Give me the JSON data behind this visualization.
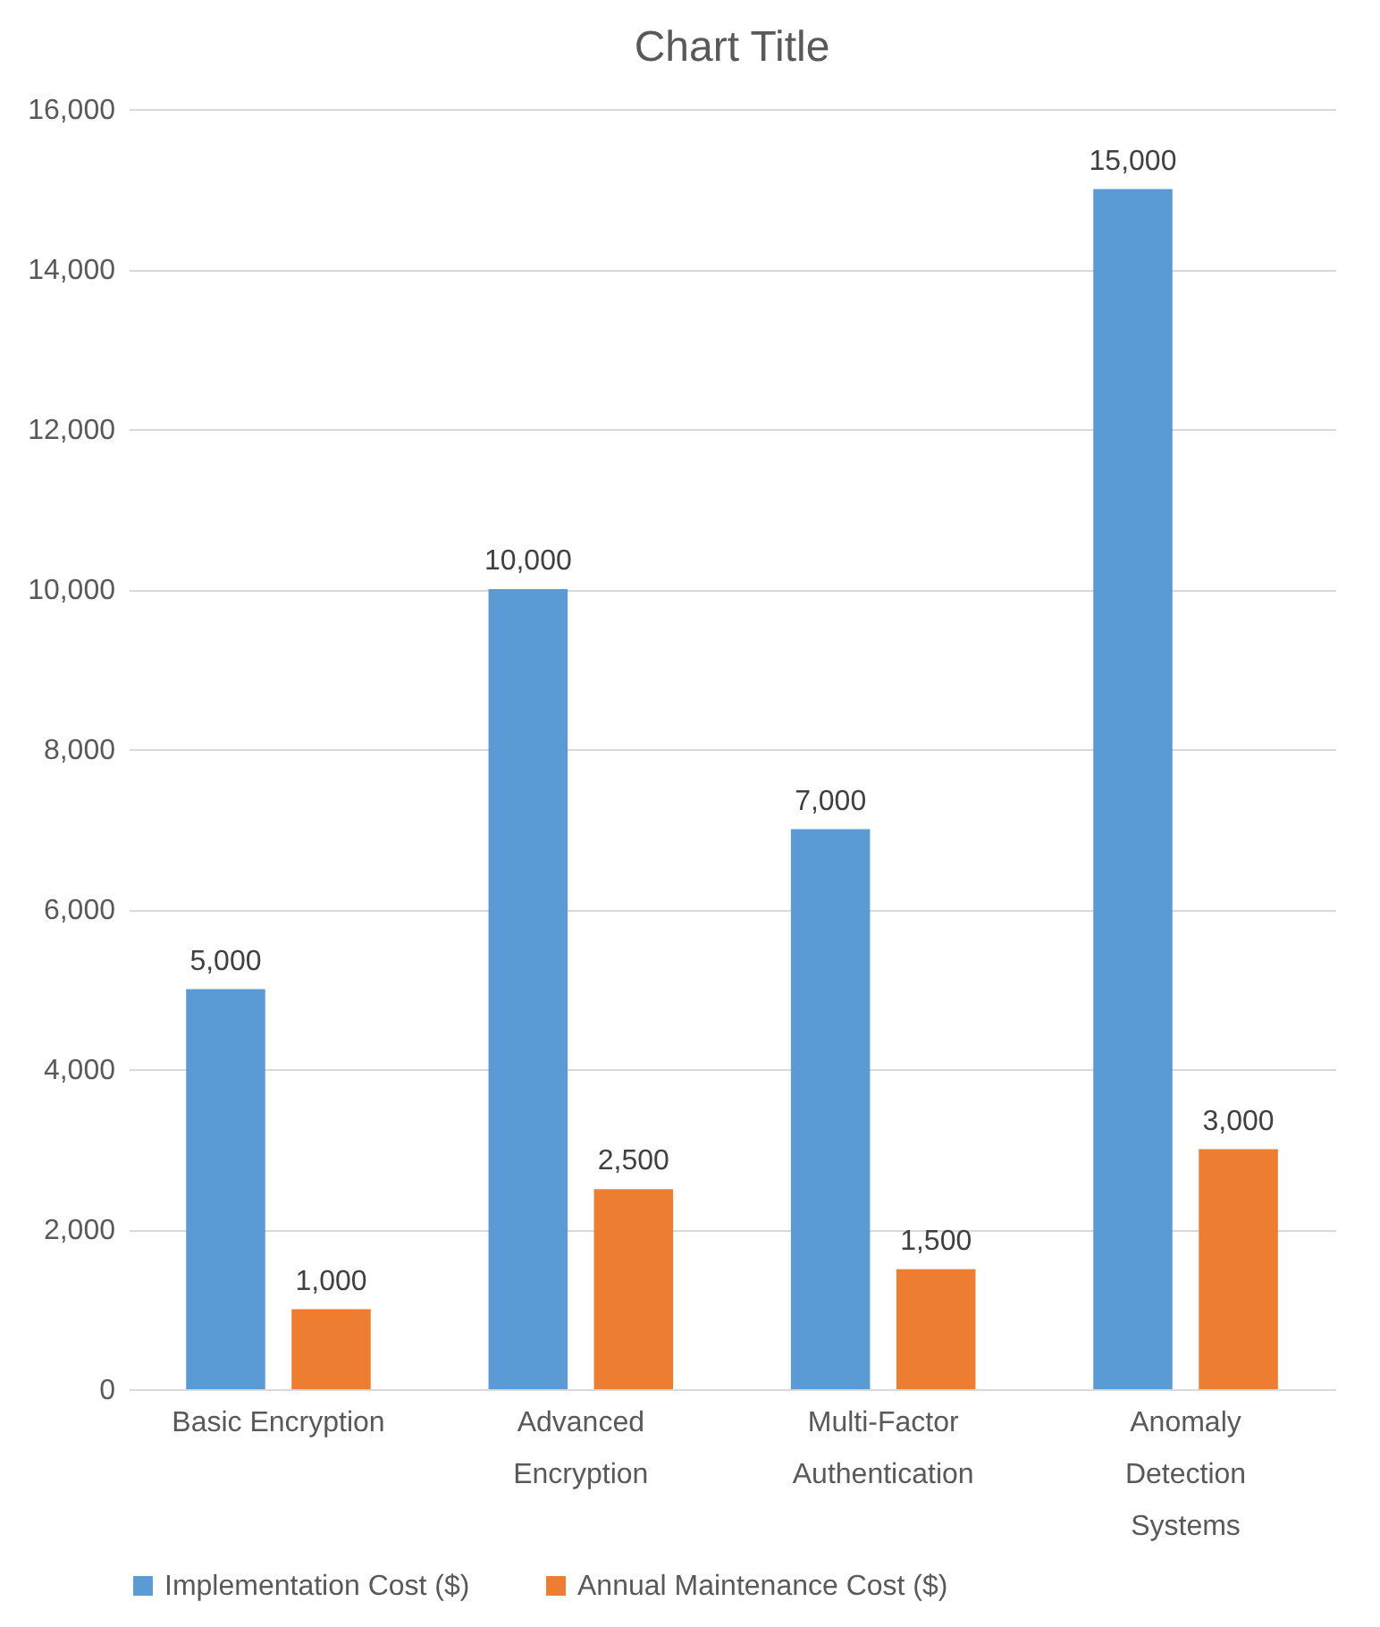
{
  "chart_data": {
    "type": "bar",
    "title": "Chart Title",
    "categories": [
      "Basic Encryption",
      "Advanced Encryption",
      "Multi-Factor Authentication",
      "Anomaly Detection Systems"
    ],
    "series": [
      {
        "name": "Implementation Cost ($)",
        "color": "#5b9bd5",
        "values": [
          5000,
          10000,
          7000,
          15000
        ],
        "value_labels": [
          "5,000",
          "10,000",
          "7,000",
          "15,000"
        ]
      },
      {
        "name": "Annual Maintenance Cost ($)",
        "color": "#ed7d31",
        "values": [
          1000,
          2500,
          1500,
          3000
        ],
        "value_labels": [
          "1,000",
          "2,500",
          "1,500",
          "3,000"
        ]
      }
    ],
    "ylim": [
      0,
      16000
    ],
    "yticks": [
      0,
      {
        "value": 2000,
        "label": "2,000"
      },
      {
        "value": 4000,
        "label": "4,000"
      },
      {
        "value": 6000,
        "label": "6,000"
      },
      {
        "value": 8000,
        "label": "8,000"
      },
      {
        "value": 10000,
        "label": "10,000"
      },
      {
        "value": 12000,
        "label": "12,000"
      },
      {
        "value": 14000,
        "label": "14,000"
      },
      {
        "value": 16000,
        "label": "16,000"
      }
    ],
    "grid": "y",
    "legend": "bottom"
  }
}
